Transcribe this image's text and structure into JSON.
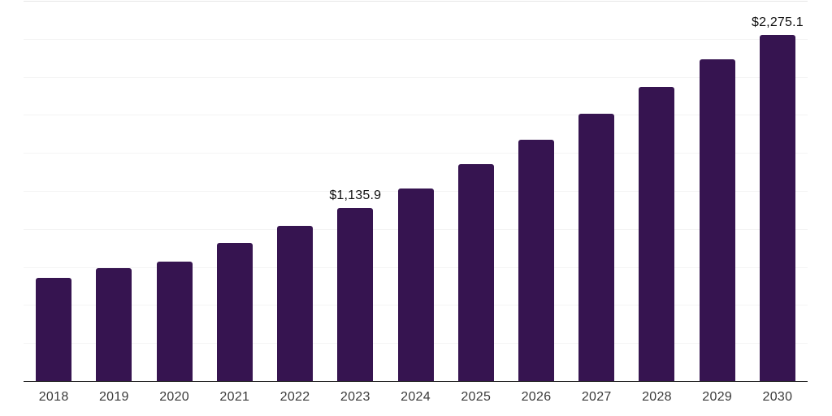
{
  "chart_data": {
    "type": "bar",
    "title": "",
    "xlabel": "",
    "ylabel": "",
    "categories": [
      "2018",
      "2019",
      "2020",
      "2021",
      "2022",
      "2023",
      "2024",
      "2025",
      "2026",
      "2027",
      "2028",
      "2029",
      "2030"
    ],
    "values": [
      680,
      741,
      785,
      910,
      1022,
      1135.9,
      1268,
      1424,
      1584,
      1756,
      1932,
      2114,
      2275.1
    ],
    "data_labels": [
      "",
      "",
      "",
      "",
      "",
      "$1,135.9",
      "",
      "",
      "",
      "",
      "",
      "",
      "$2,275.1"
    ],
    "ylim": [
      0,
      2500
    ],
    "gridline_step": 250,
    "grid": "horizontal-only",
    "legend": "none",
    "y_axis_ticks_visible": false
  },
  "colors": {
    "bar": "#361450",
    "axis_line": "#222222",
    "gridline": "#f4f4f4",
    "gridline_top": "#e7e7e7",
    "tick_label": "#3a3a3a",
    "data_label": "#111111",
    "background": "#ffffff"
  }
}
